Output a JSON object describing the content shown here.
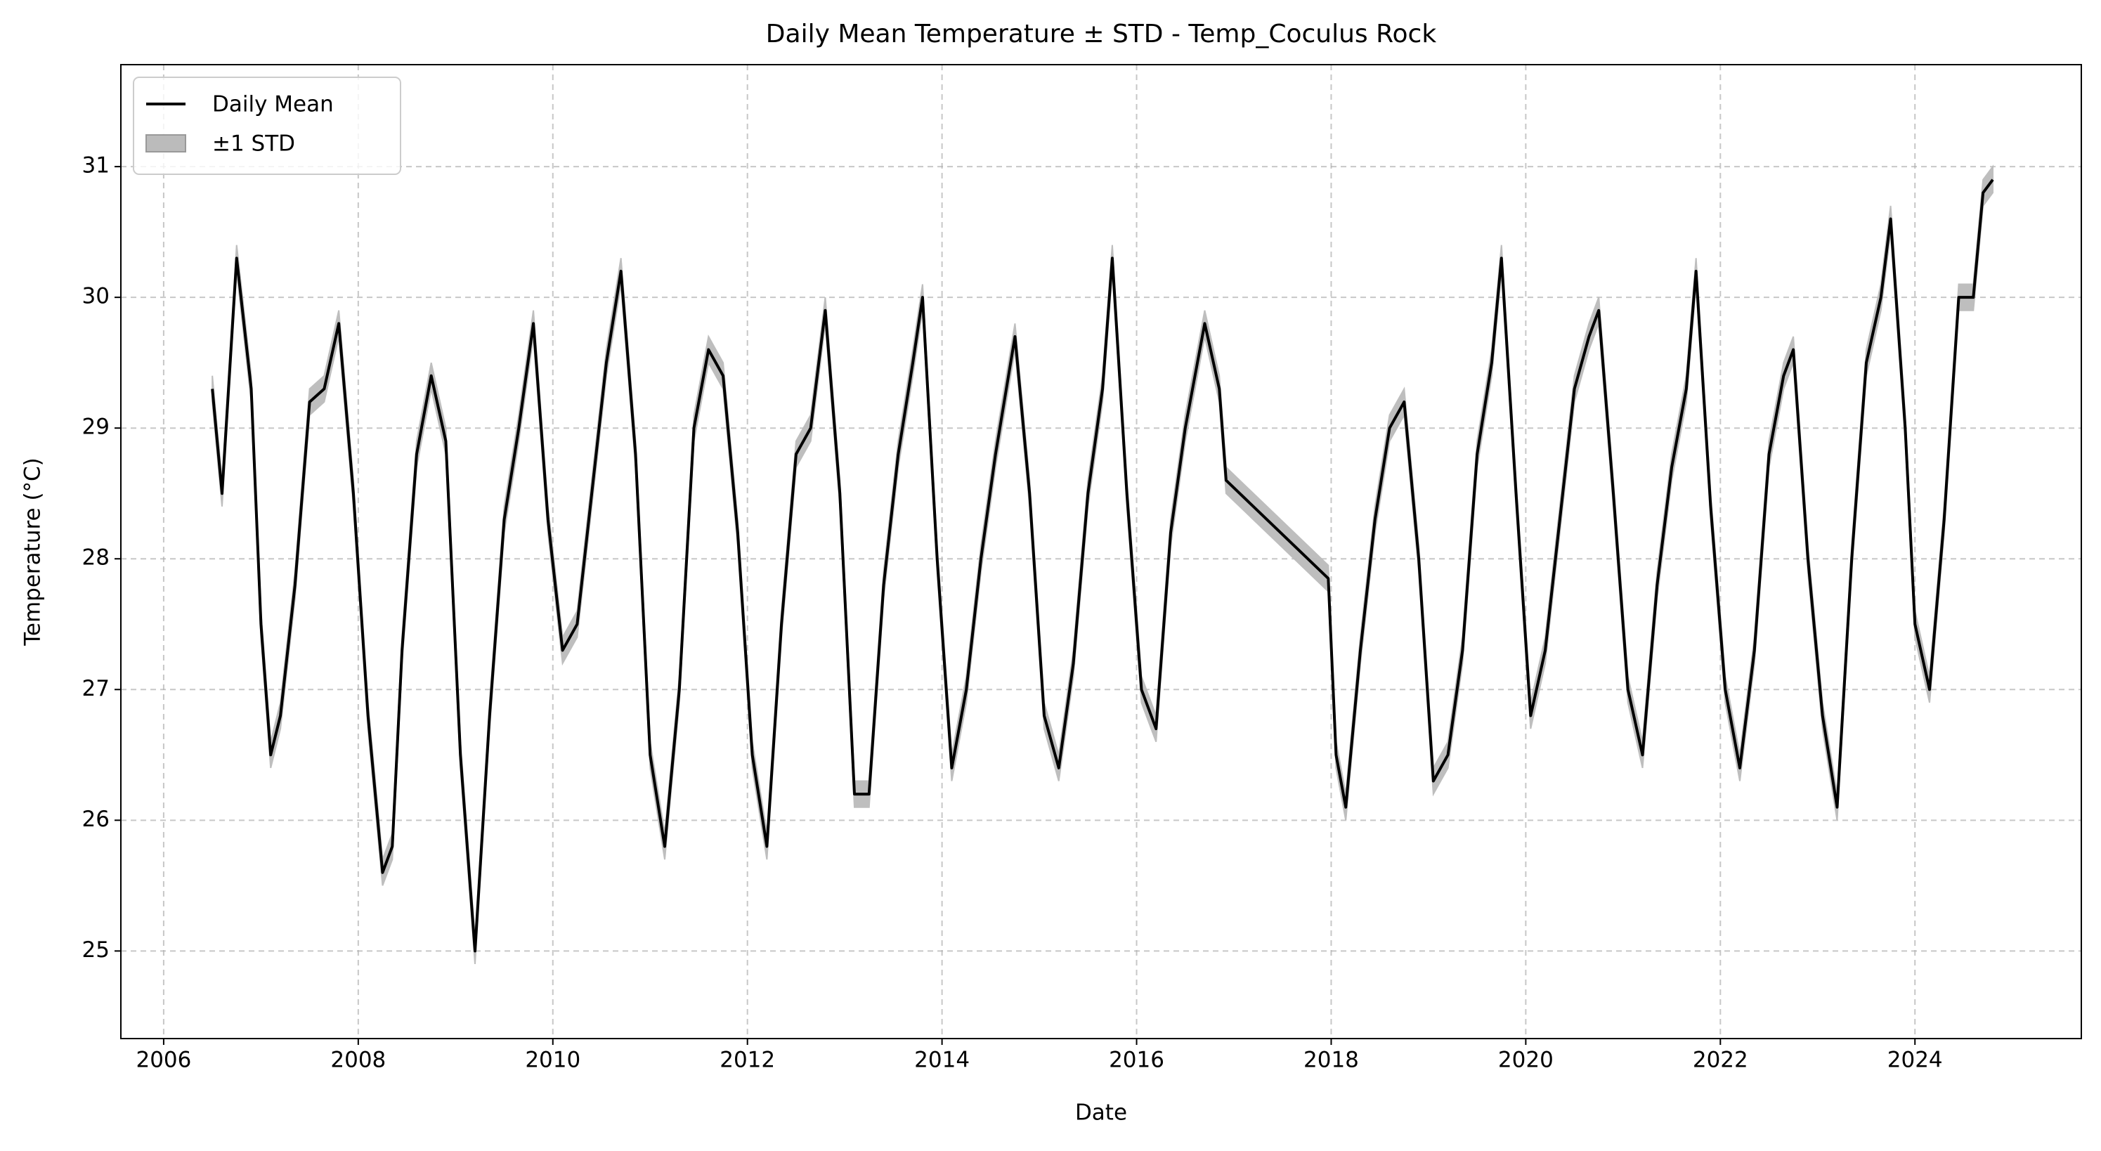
{
  "chart_data": {
    "type": "line",
    "title": "Daily Mean Temperature ± STD - Temp_Coculus Rock",
    "x_label": "Date",
    "y_label": "Temperature (°C)",
    "x": [
      2006.5,
      2006.6,
      2006.75,
      2006.9,
      2007.0,
      2007.1,
      2007.2,
      2007.35,
      2007.5,
      2007.65,
      2007.8,
      2007.95,
      2008.1,
      2008.25,
      2008.35,
      2008.45,
      2008.6,
      2008.75,
      2008.9,
      2009.05,
      2009.2,
      2009.35,
      2009.5,
      2009.65,
      2009.8,
      2009.95,
      2010.1,
      2010.25,
      2010.4,
      2010.55,
      2010.7,
      2010.85,
      2011.0,
      2011.15,
      2011.3,
      2011.45,
      2011.6,
      2011.75,
      2011.9,
      2012.05,
      2012.2,
      2012.35,
      2012.5,
      2012.65,
      2012.8,
      2012.95,
      2013.1,
      2013.25,
      2013.4,
      2013.55,
      2013.7,
      2013.8,
      2013.95,
      2014.1,
      2014.25,
      2014.4,
      2014.55,
      2014.75,
      2014.9,
      2015.05,
      2015.2,
      2015.35,
      2015.5,
      2015.65,
      2015.75,
      2015.9,
      2016.05,
      2016.2,
      2016.35,
      2016.5,
      2016.7,
      2016.85,
      2016.92,
      2017.97,
      2018.05,
      2018.15,
      2018.3,
      2018.45,
      2018.6,
      2018.75,
      2018.9,
      2019.05,
      2019.2,
      2019.35,
      2019.5,
      2019.65,
      2019.75,
      2019.9,
      2020.05,
      2020.2,
      2020.35,
      2020.5,
      2020.65,
      2020.75,
      2020.9,
      2021.05,
      2021.2,
      2021.35,
      2021.5,
      2021.65,
      2021.75,
      2021.9,
      2022.05,
      2022.2,
      2022.35,
      2022.5,
      2022.65,
      2022.75,
      2022.9,
      2023.05,
      2023.2,
      2023.35,
      2023.5,
      2023.65,
      2023.75,
      2023.9,
      2024.0,
      2024.15,
      2024.3,
      2024.45,
      2024.6,
      2024.7,
      2024.8
    ],
    "series": [
      {
        "name": "Daily Mean",
        "color": "#000000",
        "values": [
          29.3,
          28.5,
          30.3,
          29.3,
          27.5,
          26.5,
          26.8,
          27.8,
          29.2,
          29.3,
          29.8,
          28.5,
          26.8,
          25.6,
          25.8,
          27.3,
          28.8,
          29.4,
          28.9,
          26.5,
          25.0,
          26.8,
          28.3,
          29.0,
          29.8,
          28.3,
          27.3,
          27.5,
          28.5,
          29.5,
          30.2,
          28.8,
          26.5,
          25.8,
          27.0,
          29.0,
          29.6,
          29.4,
          28.2,
          26.5,
          25.8,
          27.5,
          28.8,
          29.0,
          29.9,
          28.5,
          26.2,
          26.2,
          27.8,
          28.8,
          29.5,
          30.0,
          28.0,
          26.4,
          27.0,
          28.0,
          28.8,
          29.7,
          28.5,
          26.8,
          26.4,
          27.2,
          28.5,
          29.3,
          30.3,
          28.5,
          27.0,
          26.7,
          28.2,
          29.0,
          29.8,
          29.3,
          28.6,
          27.85,
          26.5,
          26.1,
          27.3,
          28.3,
          29.0,
          29.2,
          28.0,
          26.3,
          26.5,
          27.3,
          28.8,
          29.5,
          30.3,
          28.5,
          26.8,
          27.3,
          28.3,
          29.3,
          29.7,
          29.9,
          28.5,
          27.0,
          26.5,
          27.8,
          28.7,
          29.3,
          30.2,
          28.4,
          27.0,
          26.4,
          27.3,
          28.8,
          29.4,
          29.6,
          28.0,
          26.8,
          26.1,
          28.0,
          29.5,
          30.0,
          30.6,
          29.0,
          27.5,
          27.0,
          28.3,
          30.0,
          30.0,
          30.8,
          30.9
        ]
      },
      {
        "name": "±1 STD",
        "color": "#bbbbbb",
        "values": [
          0.1,
          0.1,
          0.1,
          0.1,
          0.1,
          0.1,
          0.1,
          0.1,
          0.1,
          0.1,
          0.1,
          0.1,
          0.1,
          0.1,
          0.1,
          0.1,
          0.1,
          0.1,
          0.1,
          0.1,
          0.1,
          0.1,
          0.1,
          0.1,
          0.1,
          0.1,
          0.1,
          0.1,
          0.1,
          0.1,
          0.1,
          0.1,
          0.1,
          0.1,
          0.1,
          0.1,
          0.1,
          0.1,
          0.1,
          0.1,
          0.1,
          0.1,
          0.1,
          0.1,
          0.1,
          0.1,
          0.1,
          0.1,
          0.1,
          0.1,
          0.1,
          0.1,
          0.1,
          0.1,
          0.1,
          0.1,
          0.1,
          0.1,
          0.1,
          0.1,
          0.1,
          0.1,
          0.1,
          0.1,
          0.1,
          0.1,
          0.1,
          0.1,
          0.1,
          0.1,
          0.1,
          0.1,
          0.1,
          0.1,
          0.1,
          0.1,
          0.1,
          0.1,
          0.1,
          0.1,
          0.1,
          0.1,
          0.1,
          0.1,
          0.1,
          0.1,
          0.1,
          0.1,
          0.1,
          0.1,
          0.1,
          0.1,
          0.1,
          0.1,
          0.1,
          0.1,
          0.1,
          0.1,
          0.1,
          0.1,
          0.1,
          0.1,
          0.1,
          0.1,
          0.1,
          0.1,
          0.1,
          0.1,
          0.1,
          0.1,
          0.1,
          0.1,
          0.1,
          0.1,
          0.1,
          0.1,
          0.1,
          0.1,
          0.1,
          0.1,
          0.1,
          0.1,
          0.1
        ]
      }
    ],
    "xlim": [
      2005.56,
      2025.71
    ],
    "xticks": [
      2006,
      2008,
      2010,
      2012,
      2014,
      2016,
      2018,
      2020,
      2022,
      2024
    ],
    "ylim": [
      24.33,
      31.78
    ],
    "yticks": [
      25,
      26,
      27,
      28,
      29,
      30,
      31
    ],
    "grid": true,
    "legend": "upper left"
  }
}
